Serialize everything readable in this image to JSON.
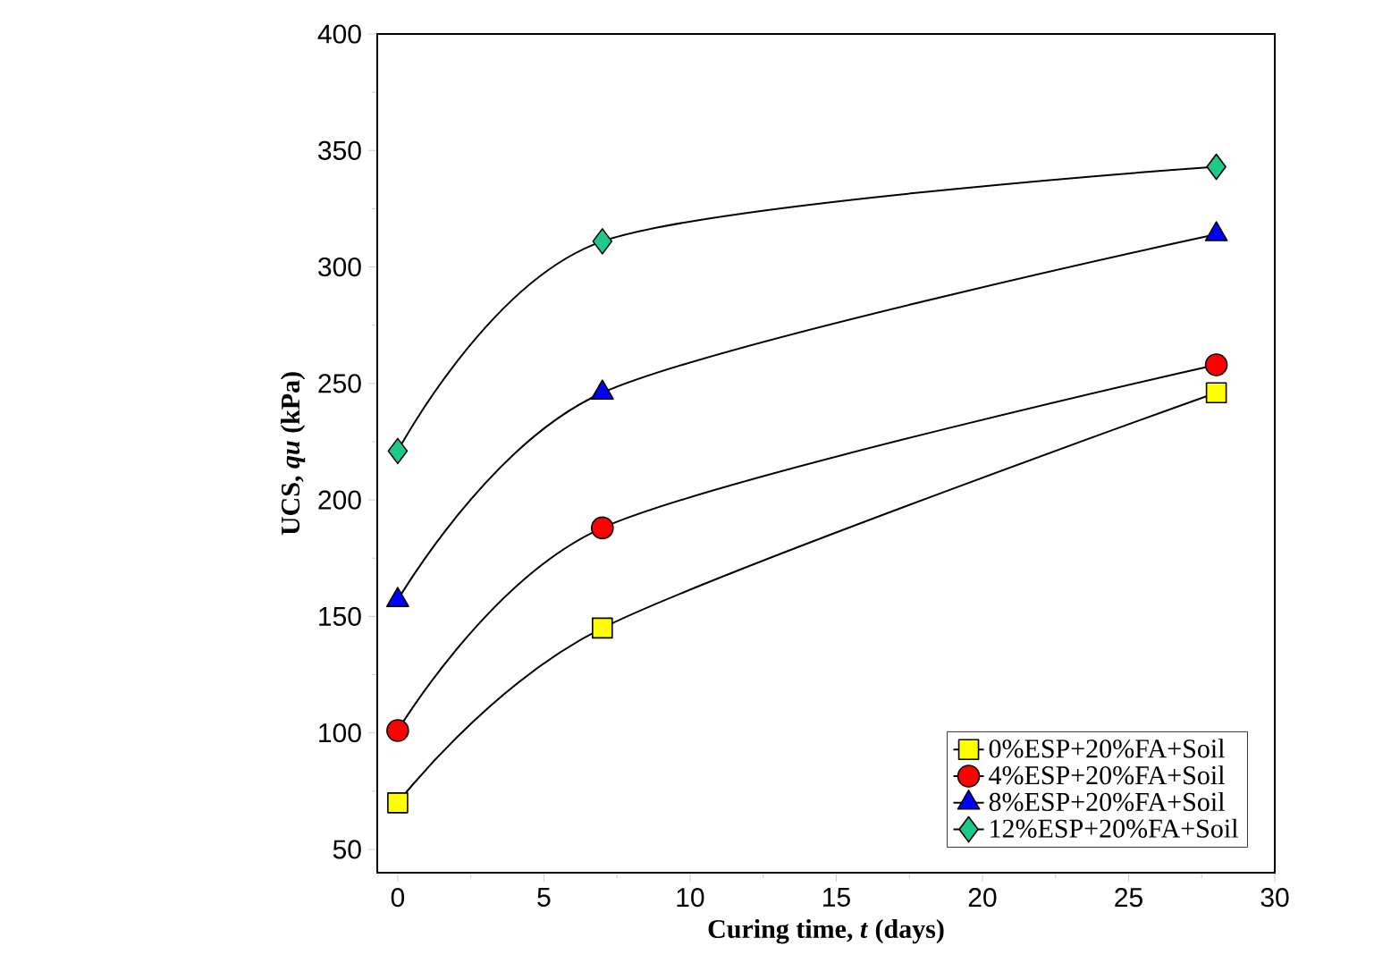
{
  "chart_data": {
    "type": "line",
    "xlabel": "Curing time, *t* (days)",
    "ylabel": "UCS, *qu* (kPa)",
    "x": [
      0,
      7,
      28
    ],
    "series": [
      {
        "name": "0%ESP+20%FA+Soil",
        "color": "#ffff00",
        "marker": "square",
        "values": [
          70,
          145,
          246
        ]
      },
      {
        "name": "4%ESP+20%FA+Soil",
        "color": "#ff0000",
        "marker": "circle",
        "values": [
          101,
          188,
          258
        ]
      },
      {
        "name": "8%ESP+20%FA+Soil",
        "color": "#0000ff",
        "marker": "triangle",
        "values": [
          157,
          246,
          314
        ]
      },
      {
        "name": "12%ESP+20%FA+Soil",
        "color": "#1ec98a",
        "marker": "diamond",
        "values": [
          221,
          311,
          343
        ]
      }
    ],
    "xlim": [
      -0.7,
      30
    ],
    "ylim": [
      40,
      400
    ],
    "xticks": [
      0,
      5,
      10,
      15,
      20,
      25,
      30
    ],
    "yticks": [
      50,
      100,
      150,
      200,
      250,
      300,
      350,
      400
    ],
    "legend": "bottom right",
    "grid": false,
    "line_style": "solid"
  }
}
